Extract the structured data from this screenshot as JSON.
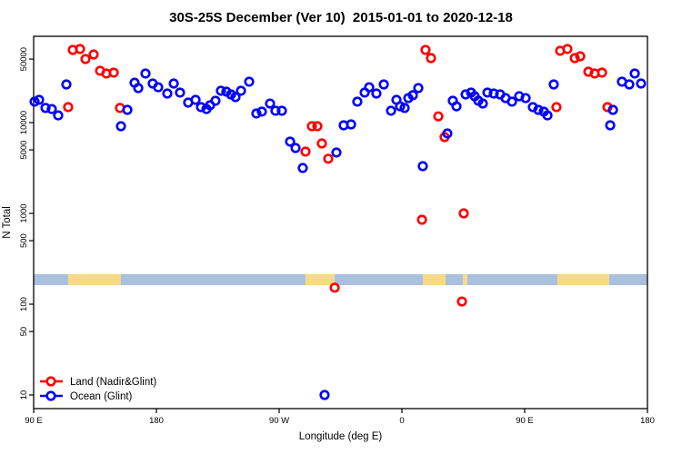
{
  "title": "30S-25S December (Ver 10)  2015-01-01 to 2020-12-18",
  "chart_data": {
    "type": "scatter",
    "title": "30S-25S December (Ver 10)  2015-01-01 to 2020-12-18",
    "xlabel": "Longitude (deg E)",
    "ylabel": "N Total",
    "x_axis": {
      "description": "Longitude wrapping eastward from 90E through 180, 90W, 0, 90E to 180 (450 degree span)",
      "span_deg": 450,
      "ticks": [
        {
          "deg": 0,
          "label": "90 E"
        },
        {
          "deg": 90,
          "label": "180"
        },
        {
          "deg": 180,
          "label": "90 W"
        },
        {
          "deg": 270,
          "label": "0"
        },
        {
          "deg": 360,
          "label": "90 E"
        },
        {
          "deg": 450,
          "label": "180"
        }
      ]
    },
    "y_axis": {
      "scale": "log",
      "ticks": [
        10,
        50,
        100,
        500,
        1000,
        5000,
        10000,
        50000
      ],
      "range_approx": [
        10,
        89000
      ]
    },
    "legend": [
      {
        "key": "land",
        "label": "Land (Nadir&Glint)",
        "color": "#ff0000"
      },
      {
        "key": "ocean",
        "label": "Ocean (Glint)",
        "color": "#0000ff"
      }
    ],
    "land_ocean_band": {
      "description": "horizontal strip marking land (yellow) vs ocean (blue) along longitude",
      "top_n": 214,
      "bottom_n": 162,
      "land_color": "#f8d98a",
      "ocean_color": "#a9c0df",
      "segments": [
        {
          "surface": "ocean",
          "from_deg": 0,
          "to_deg": 25.3
        },
        {
          "surface": "land",
          "from_deg": 25.3,
          "to_deg": 64
        },
        {
          "surface": "ocean",
          "from_deg": 64,
          "to_deg": 199.3
        },
        {
          "surface": "land",
          "from_deg": 199.3,
          "to_deg": 220.7
        },
        {
          "surface": "ocean",
          "from_deg": 220.7,
          "to_deg": 285.3
        },
        {
          "surface": "land",
          "from_deg": 285.3,
          "to_deg": 302
        },
        {
          "surface": "ocean",
          "from_deg": 302,
          "to_deg": 314.7
        },
        {
          "surface": "land",
          "from_deg": 314.7,
          "to_deg": 318
        },
        {
          "surface": "ocean",
          "from_deg": 318,
          "to_deg": 384
        },
        {
          "surface": "land",
          "from_deg": 384,
          "to_deg": 422
        },
        {
          "surface": "ocean",
          "from_deg": 422,
          "to_deg": 450
        }
      ]
    },
    "series": [
      {
        "key": "land",
        "name": "Land (Nadir&Glint)",
        "color": "#ff0000",
        "points": [
          [
            25.3,
            14800
          ],
          [
            28.7,
            63100
          ],
          [
            34,
            64600
          ],
          [
            38,
            50100
          ],
          [
            44,
            56200
          ],
          [
            48.7,
            37200
          ],
          [
            53.3,
            34700
          ],
          [
            58.7,
            35500
          ],
          [
            63.3,
            14500
          ],
          [
            199.3,
            4790
          ],
          [
            204,
            9120
          ],
          [
            208,
            9120
          ],
          [
            211.3,
            5890
          ],
          [
            216,
            4000
          ],
          [
            220.7,
            152
          ],
          [
            284.7,
            851
          ],
          [
            287.3,
            63100
          ],
          [
            291.3,
            51300
          ],
          [
            296.7,
            11700
          ],
          [
            301.3,
            6920
          ],
          [
            314,
            107
          ],
          [
            315.3,
            1000
          ],
          [
            383.3,
            14800
          ],
          [
            386,
            61700
          ],
          [
            391.3,
            64600
          ],
          [
            396.7,
            51300
          ],
          [
            400.7,
            53700
          ],
          [
            406.7,
            36300
          ],
          [
            411.3,
            34700
          ],
          [
            416.7,
            35500
          ],
          [
            420.7,
            14800
          ]
        ]
      },
      {
        "key": "ocean",
        "name": "Ocean (Glint)",
        "color": "#0000ff",
        "points": [
          [
            0.7,
            17000
          ],
          [
            4,
            17800
          ],
          [
            8.7,
            14500
          ],
          [
            13.3,
            14100
          ],
          [
            18,
            12000
          ],
          [
            24,
            26300
          ],
          [
            64,
            9120
          ],
          [
            68.7,
            13800
          ],
          [
            74,
            27500
          ],
          [
            76.7,
            24000
          ],
          [
            82,
            34700
          ],
          [
            87.3,
            26900
          ],
          [
            91.3,
            24500
          ],
          [
            98,
            20900
          ],
          [
            102.7,
            26900
          ],
          [
            107.3,
            21400
          ],
          [
            113.3,
            16600
          ],
          [
            118.7,
            17800
          ],
          [
            122.7,
            14800
          ],
          [
            126.7,
            14100
          ],
          [
            129.3,
            15500
          ],
          [
            133.3,
            17400
          ],
          [
            137.3,
            22400
          ],
          [
            141.3,
            21900
          ],
          [
            144.7,
            20400
          ],
          [
            148,
            19100
          ],
          [
            152,
            22400
          ],
          [
            158,
            28200
          ],
          [
            163.3,
            12600
          ],
          [
            167.3,
            13200
          ],
          [
            173.3,
            16200
          ],
          [
            177.3,
            13500
          ],
          [
            182,
            13500
          ],
          [
            188,
            6170
          ],
          [
            192,
            5250
          ],
          [
            197.3,
            3160
          ],
          [
            213.3,
            10
          ],
          [
            222,
            4680
          ],
          [
            227.3,
            9330
          ],
          [
            232.7,
            9550
          ],
          [
            237.3,
            17000
          ],
          [
            242.7,
            21400
          ],
          [
            246,
            24500
          ],
          [
            251.3,
            20900
          ],
          [
            256.7,
            26300
          ],
          [
            262,
            13500
          ],
          [
            266,
            17800
          ],
          [
            268.7,
            15100
          ],
          [
            272,
            14500
          ],
          [
            274.7,
            18600
          ],
          [
            278,
            20000
          ],
          [
            282,
            24000
          ],
          [
            285.3,
            3310
          ],
          [
            303.3,
            7590
          ],
          [
            307.3,
            17400
          ],
          [
            310,
            15100
          ],
          [
            316.7,
            20400
          ],
          [
            320.7,
            21400
          ],
          [
            323.3,
            19500
          ],
          [
            326,
            17400
          ],
          [
            329.3,
            16200
          ],
          [
            332.7,
            21400
          ],
          [
            337.3,
            20900
          ],
          [
            342,
            20400
          ],
          [
            346,
            18600
          ],
          [
            350.7,
            17000
          ],
          [
            356,
            19500
          ],
          [
            360.7,
            18600
          ],
          [
            366,
            14800
          ],
          [
            370,
            13800
          ],
          [
            374,
            13200
          ],
          [
            376.7,
            12000
          ],
          [
            381.3,
            26300
          ],
          [
            422.7,
            9330
          ],
          [
            424.7,
            13800
          ],
          [
            431.3,
            28200
          ],
          [
            436.7,
            26300
          ],
          [
            440.7,
            34700
          ],
          [
            445.3,
            26900
          ]
        ]
      }
    ]
  }
}
